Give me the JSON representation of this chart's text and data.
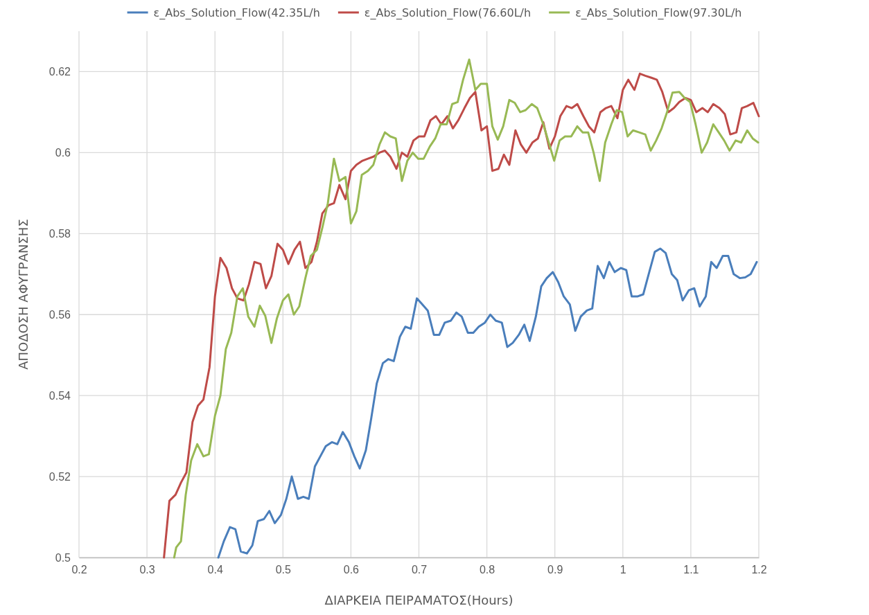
{
  "chart_data": {
    "type": "line",
    "xlabel": "ΔΙΑΡΚΕΙΑ ΠΕΙΡΑΜΑΤΟΣ(Hours)",
    "ylabel": "ΑΠΟΔΟΣΗ ΑΦΥΓΡΑΝΣΗΣ",
    "xlim": [
      0.2,
      1.2
    ],
    "xticks": [
      0.2,
      0.3,
      0.4,
      0.5,
      0.6,
      0.7,
      0.8,
      0.9,
      1,
      1.1,
      1.2
    ],
    "ylim": [
      0.5,
      0.63
    ],
    "yticks": [
      0.5,
      0.52,
      0.54,
      0.56,
      0.58,
      0.6,
      0.62
    ],
    "grid": true,
    "legend": "top",
    "marker": "none",
    "line_style": "solid",
    "series": [
      {
        "name": "ε_Abs_Solution_Flow(42.35L/h",
        "color": "#4a7ebb",
        "x": [
          0.405,
          0.413,
          0.422,
          0.43,
          0.438,
          0.447,
          0.455,
          0.463,
          0.472,
          0.48,
          0.488,
          0.497,
          0.505,
          0.513,
          0.522,
          0.53,
          0.538,
          0.547,
          0.555,
          0.563,
          0.572,
          0.58,
          0.588,
          0.597,
          0.605,
          0.613,
          0.622,
          0.63,
          0.638,
          0.647,
          0.655,
          0.663,
          0.672,
          0.68,
          0.688,
          0.697,
          0.705,
          0.713,
          0.722,
          0.73,
          0.738,
          0.747,
          0.755,
          0.763,
          0.772,
          0.78,
          0.788,
          0.797,
          0.805,
          0.813,
          0.822,
          0.83,
          0.838,
          0.847,
          0.855,
          0.863,
          0.872,
          0.88,
          0.888,
          0.897,
          0.905,
          0.913,
          0.922,
          0.93,
          0.938,
          0.947,
          0.955,
          0.963,
          0.972,
          0.98,
          0.988,
          0.997,
          1.005,
          1.013,
          1.022,
          1.03,
          1.038,
          1.047,
          1.055,
          1.063,
          1.072,
          1.08,
          1.088,
          1.097,
          1.105,
          1.113,
          1.122,
          1.13,
          1.138,
          1.147,
          1.155,
          1.163,
          1.172,
          1.18,
          1.188,
          1.197
        ],
        "values": [
          0.5,
          0.504,
          0.5075,
          0.507,
          0.5015,
          0.501,
          0.503,
          0.509,
          0.5095,
          0.5115,
          0.5085,
          0.5105,
          0.5145,
          0.52,
          0.5145,
          0.515,
          0.5145,
          0.5225,
          0.525,
          0.5275,
          0.5285,
          0.528,
          0.531,
          0.5285,
          0.525,
          0.522,
          0.5265,
          0.5345,
          0.543,
          0.548,
          0.549,
          0.5485,
          0.5545,
          0.557,
          0.5565,
          0.564,
          0.5625,
          0.561,
          0.555,
          0.555,
          0.558,
          0.5585,
          0.5605,
          0.5595,
          0.5555,
          0.5555,
          0.557,
          0.558,
          0.56,
          0.5585,
          0.558,
          0.552,
          0.553,
          0.555,
          0.5575,
          0.5535,
          0.5595,
          0.567,
          0.569,
          0.5705,
          0.568,
          0.5645,
          0.5625,
          0.556,
          0.5595,
          0.561,
          0.5615,
          0.572,
          0.569,
          0.573,
          0.5705,
          0.5715,
          0.571,
          0.5645,
          0.5645,
          0.565,
          0.57,
          0.5755,
          0.5763,
          0.5752,
          0.57,
          0.5685,
          0.5635,
          0.566,
          0.5665,
          0.562,
          0.5645,
          0.573,
          0.5715,
          0.5745,
          0.5745,
          0.57,
          0.569,
          0.5692,
          0.57,
          0.573
        ]
      },
      {
        "name": "ε_Abs_Solution_Flow(76.60L/h",
        "color": "#be4b48",
        "x": [
          0.325,
          0.333,
          0.342,
          0.35,
          0.358,
          0.367,
          0.375,
          0.383,
          0.392,
          0.4,
          0.408,
          0.417,
          0.425,
          0.433,
          0.442,
          0.45,
          0.458,
          0.467,
          0.475,
          0.483,
          0.492,
          0.5,
          0.508,
          0.517,
          0.525,
          0.533,
          0.542,
          0.55,
          0.558,
          0.567,
          0.575,
          0.583,
          0.592,
          0.6,
          0.608,
          0.617,
          0.625,
          0.633,
          0.642,
          0.65,
          0.658,
          0.667,
          0.675,
          0.683,
          0.692,
          0.7,
          0.708,
          0.717,
          0.725,
          0.733,
          0.742,
          0.75,
          0.758,
          0.767,
          0.775,
          0.783,
          0.792,
          0.8,
          0.808,
          0.817,
          0.825,
          0.833,
          0.842,
          0.85,
          0.858,
          0.867,
          0.875,
          0.883,
          0.892,
          0.9,
          0.908,
          0.917,
          0.925,
          0.933,
          0.942,
          0.95,
          0.958,
          0.967,
          0.975,
          0.983,
          0.992,
          1.0,
          1.008,
          1.017,
          1.025,
          1.033,
          1.042,
          1.05,
          1.058,
          1.067,
          1.075,
          1.083,
          1.092,
          1.1,
          1.108,
          1.117,
          1.125,
          1.133,
          1.142,
          1.15,
          1.158,
          1.167,
          1.175,
          1.183,
          1.192,
          1.2
        ],
        "values": [
          0.5,
          0.514,
          0.5155,
          0.5185,
          0.521,
          0.5335,
          0.5375,
          0.539,
          0.547,
          0.5645,
          0.574,
          0.5715,
          0.5665,
          0.564,
          0.5635,
          0.5675,
          0.573,
          0.5725,
          0.5665,
          0.5695,
          0.5775,
          0.576,
          0.5725,
          0.576,
          0.578,
          0.5715,
          0.573,
          0.578,
          0.585,
          0.587,
          0.5875,
          0.592,
          0.5885,
          0.5955,
          0.597,
          0.598,
          0.5985,
          0.599,
          0.6,
          0.6005,
          0.599,
          0.596,
          0.6,
          0.599,
          0.603,
          0.604,
          0.604,
          0.608,
          0.609,
          0.607,
          0.609,
          0.606,
          0.608,
          0.611,
          0.6135,
          0.615,
          0.6055,
          0.6065,
          0.5955,
          0.596,
          0.5995,
          0.597,
          0.6055,
          0.602,
          0.6,
          0.6025,
          0.6035,
          0.6075,
          0.601,
          0.604,
          0.609,
          0.6115,
          0.611,
          0.612,
          0.609,
          0.6065,
          0.605,
          0.61,
          0.611,
          0.6115,
          0.6085,
          0.6155,
          0.618,
          0.6155,
          0.6195,
          0.619,
          0.6185,
          0.618,
          0.615,
          0.61,
          0.611,
          0.6125,
          0.6135,
          0.613,
          0.61,
          0.611,
          0.61,
          0.612,
          0.611,
          0.6095,
          0.6045,
          0.605,
          0.611,
          0.6115,
          0.6123,
          0.609
        ]
      },
      {
        "name": "ε_Abs_Solution_Flow(97.30L/h",
        "color": "#98b954",
        "x": [
          0.34,
          0.343,
          0.35,
          0.357,
          0.365,
          0.374,
          0.383,
          0.391,
          0.4,
          0.408,
          0.416,
          0.424,
          0.433,
          0.441,
          0.449,
          0.458,
          0.466,
          0.474,
          0.483,
          0.491,
          0.5,
          0.508,
          0.516,
          0.524,
          0.533,
          0.541,
          0.55,
          0.558,
          0.566,
          0.575,
          0.583,
          0.592,
          0.6,
          0.608,
          0.616,
          0.625,
          0.633,
          0.642,
          0.65,
          0.658,
          0.666,
          0.675,
          0.683,
          0.691,
          0.699,
          0.707,
          0.716,
          0.724,
          0.732,
          0.741,
          0.749,
          0.757,
          0.765,
          0.774,
          0.783,
          0.791,
          0.8,
          0.808,
          0.816,
          0.824,
          0.833,
          0.841,
          0.849,
          0.857,
          0.866,
          0.874,
          0.883,
          0.891,
          0.899,
          0.907,
          0.915,
          0.924,
          0.933,
          0.941,
          0.949,
          0.957,
          0.966,
          0.974,
          0.983,
          0.991,
          0.999,
          1.007,
          1.015,
          1.024,
          1.033,
          1.041,
          1.049,
          1.057,
          1.065,
          1.073,
          1.083,
          1.091,
          1.099,
          1.107,
          1.116,
          1.124,
          1.133,
          1.141,
          1.149,
          1.157,
          1.166,
          1.174,
          1.183,
          1.191,
          1.199
        ],
        "values": [
          0.5,
          0.5025,
          0.504,
          0.5155,
          0.524,
          0.528,
          0.525,
          0.5255,
          0.535,
          0.54,
          0.5515,
          0.5555,
          0.5645,
          0.5665,
          0.5595,
          0.557,
          0.5622,
          0.5597,
          0.553,
          0.559,
          0.5635,
          0.565,
          0.56,
          0.562,
          0.569,
          0.5745,
          0.576,
          0.5815,
          0.5875,
          0.5985,
          0.593,
          0.594,
          0.5825,
          0.5855,
          0.5945,
          0.5955,
          0.597,
          0.602,
          0.605,
          0.604,
          0.6035,
          0.593,
          0.598,
          0.6,
          0.5985,
          0.5985,
          0.6015,
          0.6035,
          0.607,
          0.607,
          0.612,
          0.6125,
          0.618,
          0.623,
          0.6155,
          0.617,
          0.617,
          0.6065,
          0.6032,
          0.6065,
          0.613,
          0.6123,
          0.61,
          0.6105,
          0.612,
          0.611,
          0.607,
          0.6025,
          0.598,
          0.603,
          0.604,
          0.604,
          0.6065,
          0.605,
          0.605,
          0.6,
          0.593,
          0.6025,
          0.607,
          0.6105,
          0.61,
          0.604,
          0.6055,
          0.605,
          0.6045,
          0.6005,
          0.603,
          0.606,
          0.61,
          0.6148,
          0.615,
          0.6135,
          0.6125,
          0.607,
          0.6,
          0.6025,
          0.607,
          0.605,
          0.603,
          0.6005,
          0.603,
          0.6025,
          0.6055,
          0.6035,
          0.6025
        ]
      }
    ]
  }
}
